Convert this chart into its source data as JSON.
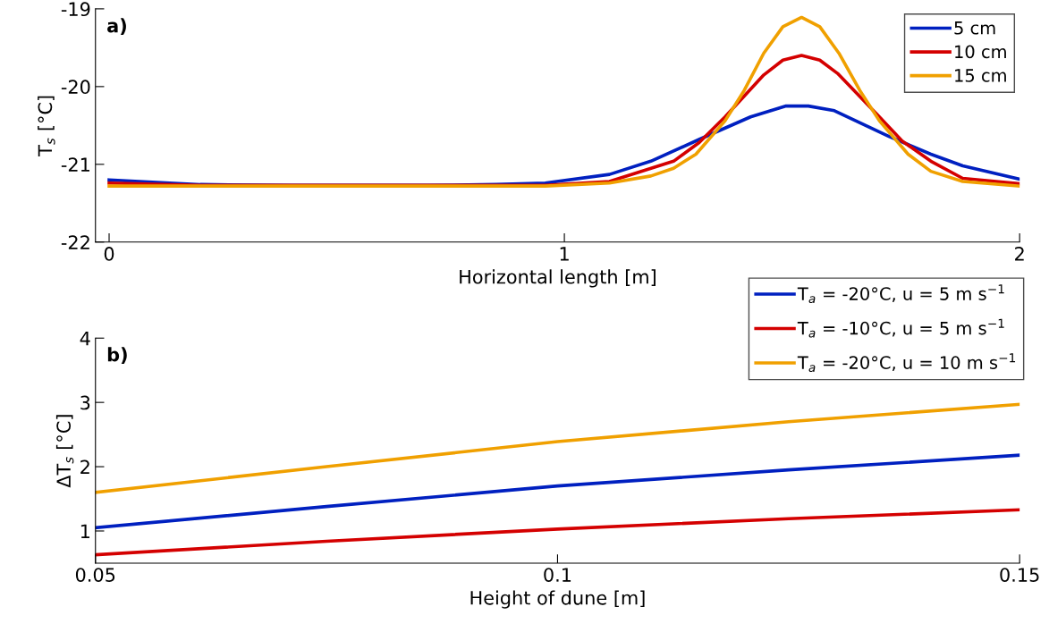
{
  "chart_data": [
    {
      "type": "line",
      "xlabel": "Horizontal length [m]",
      "ylabel": "T$_{s}$ [°C]",
      "annotations": [
        "a)"
      ],
      "xlim": [
        -0.03,
        2
      ],
      "xticks": [
        0,
        1,
        2
      ],
      "ylim": [
        -22,
        -19
      ],
      "yticks": [
        -22,
        -21,
        -20,
        -19
      ],
      "legend": "top right",
      "grid": false,
      "series": [
        {
          "name": "5 cm",
          "color": "#0020c0",
          "x": [
            0,
            0.2,
            0.4,
            0.7,
            0.85,
            0.958,
            1.099,
            1.19,
            1.296,
            1.409,
            1.487,
            1.536,
            1.593,
            1.713,
            1.805,
            1.875,
            2
          ],
          "values": [
            -21.2,
            -21.26,
            -21.27,
            -21.27,
            -21.26,
            -21.24,
            -21.13,
            -20.96,
            -20.68,
            -20.39,
            -20.25,
            -20.25,
            -20.31,
            -20.64,
            -20.87,
            -21.02,
            -21.19
          ]
        },
        {
          "name": "10 cm",
          "color": "#d40000",
          "x": [
            0,
            0.2,
            0.5,
            0.8,
            0.958,
            1.099,
            1.24,
            1.296,
            1.353,
            1.438,
            1.48,
            1.521,
            1.561,
            1.6,
            1.692,
            1.742,
            1.805,
            1.875,
            2
          ],
          "values": [
            -21.24,
            -21.27,
            -21.27,
            -21.27,
            -21.27,
            -21.22,
            -20.96,
            -20.72,
            -20.39,
            -19.85,
            -19.66,
            -19.6,
            -19.66,
            -19.83,
            -20.39,
            -20.7,
            -20.96,
            -21.18,
            -21.25
          ]
        },
        {
          "name": "15 cm",
          "color": "#f0a000",
          "x": [
            0,
            0.3,
            0.6,
            0.958,
            1.099,
            1.19,
            1.24,
            1.289,
            1.353,
            1.395,
            1.438,
            1.48,
            1.521,
            1.561,
            1.603,
            1.649,
            1.692,
            1.755,
            1.805,
            1.875,
            2
          ],
          "values": [
            -21.28,
            -21.28,
            -21.28,
            -21.28,
            -21.24,
            -21.15,
            -21.05,
            -20.87,
            -20.44,
            -20.05,
            -19.57,
            -19.23,
            -19.11,
            -19.23,
            -19.57,
            -20.05,
            -20.44,
            -20.87,
            -21.09,
            -21.22,
            -21.28
          ]
        }
      ]
    },
    {
      "type": "line",
      "xlabel": "Height of dune [m]",
      "ylabel": "ΔT$_{s}$ [°C]",
      "annotations": [
        "b)"
      ],
      "xlim": [
        0.05,
        0.15
      ],
      "xticks": [
        0.05,
        0.1,
        0.15
      ],
      "ylim": [
        0.5,
        4
      ],
      "yticks": [
        1,
        2,
        3,
        4
      ],
      "legend": "top right",
      "grid": false,
      "series": [
        {
          "name": "T$_{a}$ = -20°C, u = 5 m s$^{−1}$",
          "color": "#0020c0",
          "x": [
            0.05,
            0.075,
            0.1,
            0.125,
            0.15
          ],
          "values": [
            1.05,
            1.38,
            1.7,
            1.95,
            2.18
          ]
        },
        {
          "name": "T$_{a}$ = -10°C, u = 5 m s$^{−1}$",
          "color": "#d40000",
          "x": [
            0.05,
            0.075,
            0.1,
            0.125,
            0.15
          ],
          "values": [
            0.63,
            0.84,
            1.03,
            1.19,
            1.33
          ]
        },
        {
          "name": "T$_{a}$ = -20°C, u = 10 m s$^{−1}$",
          "color": "#f0a000",
          "x": [
            0.05,
            0.075,
            0.1,
            0.125,
            0.15
          ],
          "values": [
            1.6,
            2.0,
            2.39,
            2.7,
            2.97
          ]
        }
      ]
    }
  ]
}
